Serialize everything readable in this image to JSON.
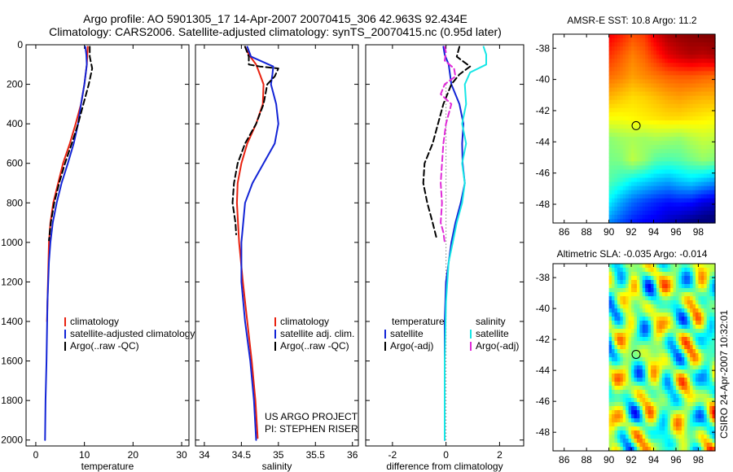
{
  "figure": {
    "title_line1": "Argo profile: AO 5901305_17 14-Apr-2007 20070415_306 42.963S 92.434E",
    "title_line2": "Climatology: CARS2006. Satellite-adjusted climatology: synTS_20070415.nc (0.95d later)",
    "side_stamp": "CSIRO 24-Apr-2007 10:32:01"
  },
  "colors": {
    "climatology": "#e8210f",
    "satellite": "#1224d6",
    "argo": "#000000",
    "salinity_satellite": "#16e6e6",
    "salinity_argo": "#e02ad8",
    "zero_line": "#444444"
  },
  "chart_data": [
    {
      "type": "line",
      "name": "temperature-profile",
      "xlabel": "temperature",
      "ylabel": "",
      "xlim": [
        -2,
        31.5
      ],
      "ylim": [
        2030,
        0
      ],
      "y_reversed": true,
      "xticks": [
        0,
        10,
        20,
        30
      ],
      "yticks": [
        0,
        200,
        400,
        600,
        800,
        1000,
        1200,
        1400,
        1600,
        1800,
        2000
      ],
      "legend_placement": "lower-right",
      "series": [
        {
          "name": "climatology",
          "color_key": "climatology",
          "dash": "solid",
          "x": [
            10.7,
            10.5,
            10.0,
            9.3,
            8.2,
            7.0,
            5.6,
            4.6,
            3.6,
            3.0,
            2.7,
            2.5,
            2.3
          ],
          "y": [
            10,
            100,
            200,
            300,
            400,
            500,
            600,
            700,
            800,
            900,
            1000,
            1200,
            1400
          ]
        },
        {
          "name": "satellite-adjusted climatology",
          "color_key": "satellite",
          "dash": "solid",
          "x": [
            10.2,
            10.4,
            10.5,
            10.0,
            9.3,
            8.7,
            7.8,
            6.6,
            5.3,
            4.3,
            3.5,
            3.0,
            2.7,
            2.4,
            2.2,
            2.0,
            1.9
          ],
          "y": [
            10,
            50,
            100,
            200,
            300,
            400,
            500,
            600,
            700,
            800,
            900,
            1000,
            1100,
            1300,
            1600,
            1800,
            2000
          ]
        },
        {
          "name": "Argo(..raw -QC)",
          "color_key": "argo",
          "dash": "dashed",
          "x": [
            11.1,
            11.1,
            11.6,
            10.9,
            9.8,
            8.7,
            7.4,
            6.0,
            4.8,
            3.8,
            3.1,
            2.7
          ],
          "y": [
            10,
            60,
            120,
            200,
            300,
            400,
            500,
            600,
            700,
            800,
            900,
            990
          ]
        }
      ]
    },
    {
      "type": "line",
      "name": "salinity-profile",
      "xlabel": "salinity",
      "ylabel": "",
      "xlim": [
        33.88,
        36.08
      ],
      "ylim": [
        2030,
        0
      ],
      "y_reversed": true,
      "xticks": [
        34,
        34.5,
        35,
        35.5,
        36
      ],
      "legend_placement": "lower-right",
      "series": [
        {
          "name": "climatology",
          "color_key": "climatology",
          "dash": "solid",
          "x": [
            34.55,
            34.6,
            34.7,
            34.75,
            34.8,
            34.79,
            34.7,
            34.58,
            34.5,
            34.45,
            34.44,
            34.47,
            34.52,
            34.58,
            34.64,
            34.69,
            34.72
          ],
          "y": [
            10,
            50,
            100,
            150,
            200,
            300,
            400,
            500,
            600,
            700,
            800,
            1000,
            1200,
            1400,
            1600,
            1800,
            1990
          ]
        },
        {
          "name": "satellite adj. clim.",
          "color_key": "satellite",
          "dash": "solid",
          "x": [
            34.58,
            34.63,
            34.93,
            34.92,
            34.9,
            34.97,
            35.0,
            34.95,
            34.8,
            34.65,
            34.55,
            34.5,
            34.5,
            34.55,
            34.62,
            34.67,
            34.7
          ],
          "y": [
            10,
            60,
            110,
            150,
            200,
            300,
            400,
            500,
            600,
            700,
            800,
            1000,
            1200,
            1400,
            1600,
            1800,
            2000
          ]
        },
        {
          "name": "Argo(..raw -QC)",
          "color_key": "argo",
          "dash": "dashed",
          "x": [
            34.55,
            34.6,
            34.6,
            34.75,
            35.0,
            34.95,
            34.85,
            34.8,
            34.7,
            34.55,
            34.45,
            34.4,
            34.38,
            34.42,
            34.43
          ],
          "y": [
            10,
            60,
            100,
            110,
            120,
            160,
            200,
            300,
            400,
            500,
            600,
            700,
            800,
            900,
            960
          ]
        }
      ]
    },
    {
      "type": "line",
      "name": "difference-profile",
      "xlabel": "difference from climatology",
      "ylabel": "",
      "xlim": [
        -3.0,
        2.9
      ],
      "ylim": [
        2030,
        0
      ],
      "y_reversed": true,
      "xticks": [
        -2,
        0,
        2
      ],
      "legend_placement": "lower-right",
      "legend_headers": [
        "temperature",
        "salinity"
      ],
      "series": [
        {
          "name": "satellite",
          "group": "temperature",
          "color_key": "satellite",
          "dash": "solid",
          "x": [
            -0.1,
            -0.05,
            0.1,
            0.2,
            0.5,
            0.65,
            0.6,
            0.62,
            0.7,
            0.55,
            0.35,
            0.2,
            0.1,
            0.0,
            -0.05,
            -0.05,
            -0.05,
            -0.05
          ],
          "y": [
            10,
            50,
            100,
            200,
            300,
            400,
            500,
            600,
            700,
            800,
            900,
            1000,
            1100,
            1200,
            1400,
            1600,
            1800,
            2000
          ]
        },
        {
          "name": "Argo(-adj)",
          "group": "temperature",
          "color_key": "argo",
          "dash": "dashed",
          "x": [
            0.5,
            0.4,
            0.9,
            0.5,
            0.2,
            -0.1,
            -0.3,
            -0.5,
            -0.8,
            -0.85,
            -0.7,
            -0.6,
            -0.5,
            -0.35
          ],
          "y": [
            10,
            60,
            110,
            150,
            200,
            300,
            400,
            500,
            600,
            700,
            800,
            850,
            900,
            980
          ]
        },
        {
          "name": "satellite",
          "group": "salinity",
          "color_key": "salinity_satellite",
          "dash": "solid",
          "x": [
            1.4,
            1.5,
            1.5,
            0.9,
            0.7,
            0.75,
            0.6,
            0.75,
            0.6,
            0.7,
            0.6,
            0.4,
            0.25,
            0.1,
            0.0,
            -0.05,
            -0.05
          ],
          "y": [
            10,
            50,
            100,
            140,
            200,
            300,
            400,
            500,
            600,
            700,
            800,
            900,
            1000,
            1100,
            1300,
            1600,
            2000
          ]
        },
        {
          "name": "Argo(-adj)",
          "group": "salinity",
          "color_key": "salinity_argo",
          "dash": "dashed",
          "x": [
            -0.05,
            0.0,
            -0.05,
            0.3,
            0.35,
            -0.05,
            -0.2,
            0.2,
            0.0,
            -0.1,
            -0.15,
            -0.2,
            -0.15,
            -0.2,
            -0.1,
            -0.05
          ],
          "y": [
            10,
            40,
            80,
            120,
            160,
            200,
            250,
            300,
            400,
            500,
            600,
            700,
            800,
            900,
            950,
            1000
          ]
        }
      ]
    },
    {
      "type": "heatmap",
      "name": "sst-map",
      "title": "AMSR-E SST: 10.8 Argo: 11.2",
      "xlim": [
        85,
        99.5
      ],
      "ylim": [
        -49.2,
        -37.1
      ],
      "xticks": [
        86,
        88,
        90,
        92,
        94,
        96,
        98
      ],
      "yticks": [
        -38,
        -40,
        -42,
        -44,
        -46,
        -48
      ],
      "data_xlim": [
        90,
        99.5
      ],
      "marker": {
        "lon": 92.434,
        "lat": -42.963
      },
      "color_scale": "jet",
      "field_range": [
        5,
        15
      ],
      "field_rows_top_to_bottom": [
        [
          13.9,
          13.5,
          13.0,
          13.2,
          14.1,
          14.6,
          14.8,
          14.9,
          15.0,
          15.0
        ],
        [
          13.3,
          12.9,
          12.5,
          12.8,
          13.4,
          14.0,
          14.3,
          14.5,
          14.4,
          14.6
        ],
        [
          12.7,
          12.5,
          12.2,
          12.4,
          12.6,
          12.8,
          12.9,
          12.9,
          12.8,
          12.7
        ],
        [
          12.0,
          11.8,
          11.6,
          11.7,
          11.9,
          12.1,
          12.2,
          12.1,
          12.0,
          12.0
        ],
        [
          11.2,
          11.2,
          11.3,
          11.4,
          11.5,
          11.6,
          11.6,
          11.5,
          11.4,
          11.3
        ],
        [
          10.1,
          10.3,
          10.4,
          10.3,
          10.4,
          10.3,
          10.2,
          10.5,
          10.7,
          10.6
        ],
        [
          9.9,
          10.0,
          10.6,
          10.2,
          9.6,
          9.5,
          9.6,
          9.9,
          10.2,
          10.0
        ],
        [
          9.6,
          9.2,
          8.7,
          8.4,
          8.1,
          7.9,
          8.2,
          8.4,
          8.1,
          7.8
        ],
        [
          8.7,
          7.9,
          7.3,
          6.9,
          6.6,
          6.4,
          6.5,
          6.4,
          6.0,
          5.8
        ],
        [
          7.6,
          7.0,
          6.5,
          6.2,
          6.0,
          5.6,
          5.3,
          5.0,
          4.8,
          4.6
        ]
      ]
    },
    {
      "type": "heatmap",
      "name": "sla-map",
      "title": "Altimetric SLA: -0.035 Argo: -0.014",
      "xlim": [
        85,
        99.5
      ],
      "ylim": [
        -49.2,
        -37.1
      ],
      "xticks": [
        86,
        88,
        90,
        92,
        94,
        96,
        98
      ],
      "yticks": [
        -38,
        -40,
        -42,
        -44,
        -46,
        -48
      ],
      "data_xlim": [
        90,
        99.5
      ],
      "marker": {
        "lon": 92.434,
        "lat": -42.963
      },
      "color_scale": "jet",
      "field_range": [
        -0.4,
        0.4
      ]
    }
  ]
}
